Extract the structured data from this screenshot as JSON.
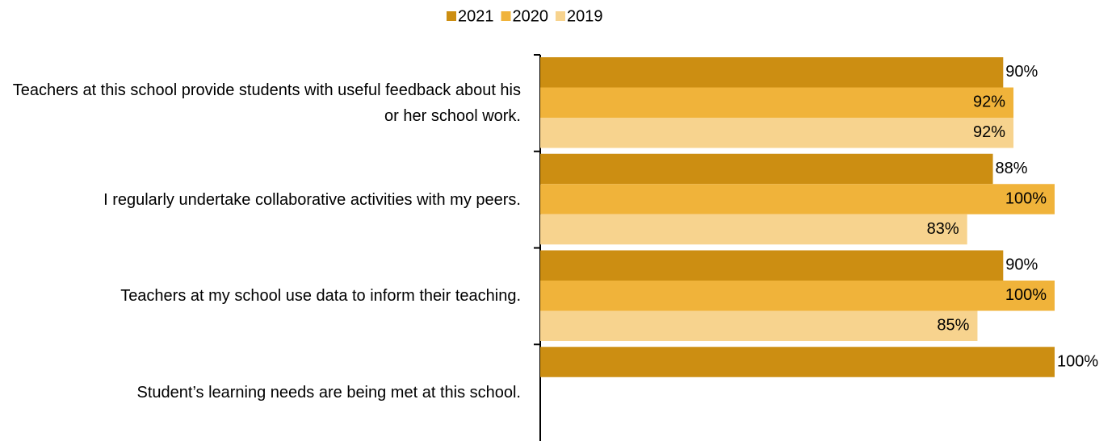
{
  "chart_data": {
    "type": "hbar",
    "categories": [
      "Teachers at this school provide students with useful feedback about his or her school work.",
      "I regularly undertake collaborative activities with my peers.",
      "Teachers at my school use data to inform their teaching.",
      "Student’s learning needs are being met at this school."
    ],
    "series": [
      {
        "name": "2021",
        "color": "#cc8e12",
        "values": [
          90,
          88,
          90,
          100
        ],
        "value_labels": [
          "90%",
          "88%",
          "90%",
          "100%"
        ]
      },
      {
        "name": "2020",
        "color": "#f0b33a",
        "values": [
          92,
          100,
          100,
          null
        ],
        "value_labels": [
          "92%",
          "100%",
          "100%",
          null
        ]
      },
      {
        "name": "2019",
        "color": "#f7d38e",
        "values": [
          92,
          83,
          85,
          null
        ],
        "value_labels": [
          "92%",
          "83%",
          "85%",
          null
        ]
      }
    ],
    "xlim": [
      0,
      100
    ],
    "legend": "top"
  }
}
